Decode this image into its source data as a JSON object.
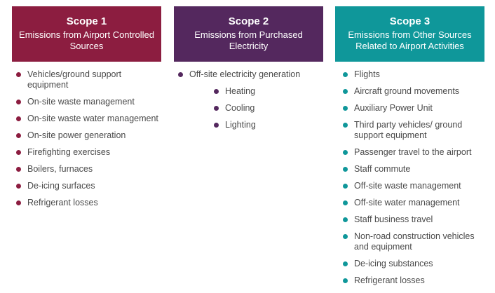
{
  "colors": {
    "scope1": "#8c1d40",
    "scope2": "#54285e",
    "scope3": "#0f979a"
  },
  "scopes": [
    {
      "title": "Scope 1",
      "subtitle": "Emissions from Airport Controlled Sources",
      "items": [
        {
          "label": "Vehicles/ground support equipment"
        },
        {
          "label": "On-site waste management"
        },
        {
          "label": "On-site waste water management"
        },
        {
          "label": "On-site power generation"
        },
        {
          "label": "Firefighting exercises"
        },
        {
          "label": "Boilers, furnaces"
        },
        {
          "label": "De-icing surfaces"
        },
        {
          "label": "Refrigerant losses"
        }
      ]
    },
    {
      "title": "Scope 2",
      "subtitle": "Emissions from Purchased Electricity",
      "items": [
        {
          "label": "Off-site electricity generation"
        },
        {
          "label": "Heating",
          "sub": true
        },
        {
          "label": "Cooling",
          "sub": true
        },
        {
          "label": "Lighting",
          "sub": true
        }
      ]
    },
    {
      "title": "Scope 3",
      "subtitle": "Emissions from Other Sources Related to Airport Activities",
      "items": [
        {
          "label": "Flights"
        },
        {
          "label": "Aircraft ground movements"
        },
        {
          "label": "Auxiliary Power Unit"
        },
        {
          "label": "Third party vehicles/ ground support equipment"
        },
        {
          "label": "Passenger travel to the airport"
        },
        {
          "label": "Staff commute"
        },
        {
          "label": "Off-site waste management"
        },
        {
          "label": "Off-site water management"
        },
        {
          "label": "Staff business travel"
        },
        {
          "label": "Non-road construction vehicles and equipment"
        },
        {
          "label": "De-icing substances"
        },
        {
          "label": "Refrigerant losses"
        }
      ]
    }
  ]
}
